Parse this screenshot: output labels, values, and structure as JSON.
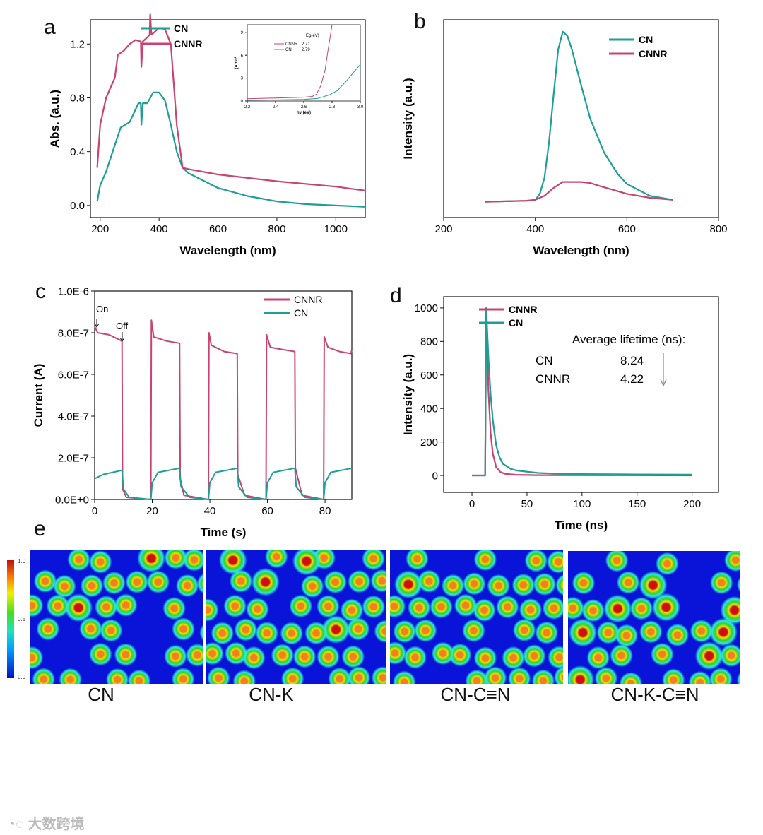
{
  "panels": {
    "a": "a",
    "b": "b",
    "c": "c",
    "d": "d",
    "e": "e"
  },
  "colors": {
    "CN": "#1f9e93",
    "CNNR": "#c8436f"
  },
  "chart_data": [
    {
      "id": "a",
      "type": "line",
      "xlabel": "Wavelength (nm)",
      "ylabel": "Abs. (a.u.)",
      "xlim": [
        167,
        1100
      ],
      "ylim": [
        -0.09,
        1.38
      ],
      "xticks": [
        200,
        400,
        600,
        800,
        1000
      ],
      "xtick_labels": [
        "200",
        "400",
        "600",
        "800",
        "1000"
      ],
      "yticks": [
        0,
        0.4,
        0.8,
        1.2
      ],
      "ytick_labels": [
        "0.0",
        "0.4",
        "0.8",
        "1.2"
      ],
      "legend": [
        "CN",
        "CNNR"
      ],
      "series": [
        {
          "name": "CN",
          "x": [
            190,
            200,
            220,
            250,
            270,
            300,
            330,
            338,
            340,
            345,
            360,
            380,
            400,
            420,
            440,
            460,
            480,
            500,
            600,
            700,
            800,
            900,
            1000,
            1100
          ],
          "y": [
            0.03,
            0.15,
            0.25,
            0.45,
            0.58,
            0.62,
            0.76,
            0.76,
            0.6,
            0.76,
            0.76,
            0.84,
            0.84,
            0.78,
            0.6,
            0.4,
            0.28,
            0.24,
            0.13,
            0.07,
            0.03,
            0.01,
            0.0,
            -0.01
          ]
        },
        {
          "name": "CNNR",
          "x": [
            190,
            200,
            220,
            250,
            260,
            280,
            300,
            320,
            335,
            338,
            340,
            345,
            360,
            368,
            370,
            374,
            380,
            400,
            420,
            440,
            460,
            480,
            500,
            600,
            800,
            1000,
            1100
          ],
          "y": [
            0.28,
            0.6,
            0.8,
            0.95,
            1.12,
            1.15,
            1.2,
            1.23,
            1.22,
            1.22,
            1.03,
            1.22,
            1.25,
            1.27,
            1.42,
            1.27,
            1.28,
            1.32,
            1.31,
            1.2,
            0.6,
            0.28,
            0.27,
            0.23,
            0.18,
            0.14,
            0.11
          ]
        }
      ]
    },
    {
      "id": "a-inset",
      "type": "line",
      "xlabel": "hν (eV)",
      "ylabel": "(Ahν)²",
      "xlim": [
        2.2,
        3.0
      ],
      "ylim": [
        0,
        10
      ],
      "xticks": [
        2.2,
        2.4,
        2.6,
        2.8,
        3.0
      ],
      "xtick_labels": [
        "2.2",
        "2.4",
        "2.6",
        "2.8",
        "3.0"
      ],
      "yticks": [
        0,
        3,
        6,
        9
      ],
      "ytick_labels": [
        "0",
        "3",
        "6",
        "9"
      ],
      "legend_title": "Eg(eV)",
      "legend": [
        "CNNR",
        "CN"
      ],
      "legend_values": [
        "2.71",
        "2.79"
      ],
      "series": [
        {
          "name": "CNNR",
          "x": [
            2.2,
            2.4,
            2.6,
            2.66,
            2.69,
            2.72,
            2.75,
            2.77,
            2.79,
            2.8
          ],
          "y": [
            0.3,
            0.4,
            0.5,
            0.6,
            0.9,
            2.0,
            4.0,
            6.5,
            8.8,
            10
          ]
        },
        {
          "name": "CN",
          "x": [
            2.2,
            2.4,
            2.6,
            2.7,
            2.78,
            2.84,
            2.9,
            2.95,
            3.0
          ],
          "y": [
            0.1,
            0.15,
            0.2,
            0.35,
            0.8,
            1.4,
            2.6,
            3.7,
            4.8
          ]
        }
      ]
    },
    {
      "id": "b",
      "type": "line",
      "xlabel": "Wavelength (nm)",
      "ylabel": "Intensity (a.u.)",
      "xlim": [
        200,
        800
      ],
      "ylim": [
        0,
        1
      ],
      "xticks": [
        200,
        400,
        600,
        800
      ],
      "xtick_labels": [
        "200",
        "400",
        "600",
        "800"
      ],
      "yticks": [],
      "ytick_labels": [],
      "legend": [
        "CN",
        "CNNR"
      ],
      "series": [
        {
          "name": "CN",
          "x": [
            290,
            380,
            400,
            410,
            420,
            430,
            440,
            450,
            460,
            470,
            480,
            490,
            500,
            520,
            550,
            580,
            600,
            650,
            700
          ],
          "y": [
            0.08,
            0.085,
            0.09,
            0.12,
            0.2,
            0.38,
            0.62,
            0.85,
            0.94,
            0.92,
            0.85,
            0.76,
            0.67,
            0.5,
            0.33,
            0.22,
            0.17,
            0.11,
            0.09
          ]
        },
        {
          "name": "CNNR",
          "x": [
            290,
            380,
            400,
            420,
            440,
            460,
            480,
            500,
            520,
            540,
            570,
            600,
            650,
            700
          ],
          "y": [
            0.08,
            0.085,
            0.09,
            0.11,
            0.15,
            0.18,
            0.18,
            0.18,
            0.175,
            0.16,
            0.14,
            0.12,
            0.1,
            0.09
          ]
        }
      ]
    },
    {
      "id": "c",
      "type": "line",
      "xlabel": "Time (s)",
      "ylabel": "Current (A)",
      "xlim": [
        0,
        89.3
      ],
      "ylim": [
        0,
        10
      ],
      "y_unit": "1E-7 A",
      "xticks": [
        0,
        20,
        40,
        60,
        80
      ],
      "xtick_labels": [
        "0",
        "20",
        "40",
        "60",
        "80"
      ],
      "yticks": [
        0,
        2,
        4,
        6,
        8,
        10
      ],
      "ytick_labels": [
        "0.0E+0",
        "2.0E-7",
        "4.0E-7",
        "6.0E-7",
        "8.0E-7",
        "1.0E-6"
      ],
      "legend": [
        "CNNR",
        "CN"
      ],
      "annotations": [
        "On",
        "Off"
      ],
      "series": [
        {
          "name": "CNNR",
          "x": [
            0,
            1,
            5,
            9.5,
            9.7,
            11,
            19.5,
            19.7,
            20.5,
            25,
            29.5,
            29.7,
            31,
            39.5,
            39.7,
            40.5,
            45,
            49.5,
            49.7,
            52,
            59.5,
            59.7,
            61,
            65,
            69.5,
            69.7,
            72,
            79.5,
            79.7,
            81,
            85,
            89,
            89.3
          ],
          "y": [
            8.3,
            8.0,
            7.9,
            7.6,
            0.5,
            0.1,
            0,
            8.6,
            7.8,
            7.6,
            7.5,
            1.0,
            0.2,
            0,
            8.0,
            7.4,
            7.1,
            7.0,
            1.2,
            0.2,
            0,
            7.9,
            7.3,
            7.2,
            7.1,
            1.5,
            0.2,
            0,
            7.8,
            7.3,
            7.1,
            7.0,
            7.2
          ]
        },
        {
          "name": "CN",
          "x": [
            0,
            3,
            9.5,
            10,
            12,
            19.5,
            20,
            22,
            29.5,
            30,
            33,
            39.5,
            40,
            42,
            49.5,
            50,
            53,
            59.5,
            60,
            62,
            69.5,
            70,
            73,
            79.5,
            80,
            82,
            89.3
          ],
          "y": [
            1.0,
            1.2,
            1.4,
            0.5,
            0.1,
            0,
            0.8,
            1.3,
            1.5,
            0.6,
            0.1,
            0,
            0.8,
            1.3,
            1.5,
            0.6,
            0.1,
            0,
            0.8,
            1.3,
            1.5,
            0.6,
            0.1,
            0,
            0.8,
            1.3,
            1.5
          ]
        }
      ]
    },
    {
      "id": "d",
      "type": "line",
      "xlabel": "Time (ns)",
      "ylabel": "Intensity (a.u.)",
      "xlim": [
        -25.7,
        224
      ],
      "ylim": [
        -101,
        1067
      ],
      "xticks": [
        0,
        50,
        100,
        150,
        200
      ],
      "xtick_labels": [
        "0",
        "50",
        "100",
        "150",
        "200"
      ],
      "yticks": [
        0,
        200,
        400,
        600,
        800,
        1000
      ],
      "ytick_labels": [
        "0",
        "200",
        "400",
        "600",
        "800",
        "1000"
      ],
      "legend": [
        "CNNR",
        "CN"
      ],
      "annotation": {
        "title": "Average lifetime (ns):",
        "rows": [
          {
            "name": "CN",
            "value": "8.24"
          },
          {
            "name": "CNNR",
            "value": "4.22"
          }
        ]
      },
      "series": [
        {
          "name": "CNNR",
          "x": [
            0,
            12,
            13,
            14,
            15,
            17,
            19,
            22,
            26,
            30,
            40,
            60,
            200
          ],
          "y": [
            0,
            0,
            1000,
            750,
            500,
            250,
            130,
            50,
            20,
            10,
            4,
            2,
            0
          ]
        },
        {
          "name": "CN",
          "x": [
            0,
            12,
            13,
            14,
            15,
            17,
            19,
            22,
            25,
            28,
            35,
            40,
            60,
            80,
            100,
            150,
            200
          ],
          "y": [
            0,
            0,
            1000,
            850,
            700,
            480,
            330,
            180,
            110,
            70,
            40,
            30,
            15,
            10,
            8,
            6,
            5
          ]
        }
      ]
    }
  ],
  "elf": {
    "labels": [
      "CN",
      "CN-K",
      "CN-C≡N",
      "CN-K-C≡N"
    ],
    "colorbar_ticks": [
      "1.0",
      "0.5",
      "0.0"
    ]
  },
  "watermark": "大数跨境"
}
